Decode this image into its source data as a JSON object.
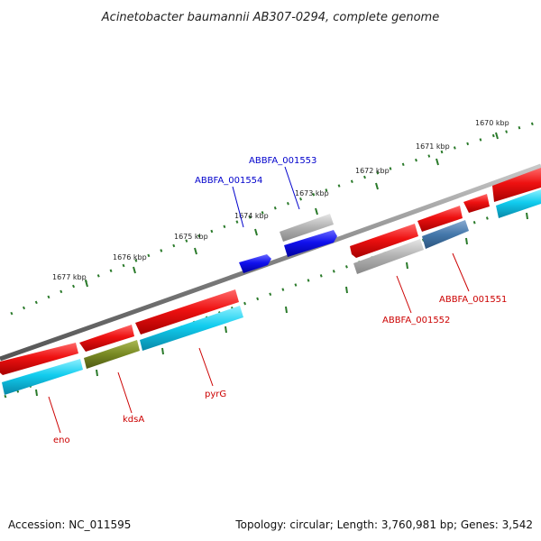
{
  "title": "Acinetobacter baumannii AB307-0294, complete genome",
  "footer": {
    "accession": "Accession: NC_011595",
    "stats": "Topology: circular; Length: 3,760,981 bp; Genes: 3,542"
  },
  "scale": {
    "ticks": [
      {
        "label": "1677 kbp"
      },
      {
        "label": "1676 kbp"
      },
      {
        "label": "1675 kbp"
      },
      {
        "label": "1674 kbp"
      },
      {
        "label": "1673 kbp"
      },
      {
        "label": "1672 kbp"
      },
      {
        "label": "1671 kbp"
      },
      {
        "label": "1670 kbp"
      }
    ]
  },
  "gene_labels": [
    {
      "text": "ABBFA_001553",
      "color": "#0000cc"
    },
    {
      "text": "ABBFA_001554",
      "color": "#0000cc"
    },
    {
      "text": "ABBFA_001552",
      "color": "#cc0000"
    },
    {
      "text": "ABBFA_001551",
      "color": "#cc0000"
    },
    {
      "text": "eno",
      "color": "#cc0000"
    },
    {
      "text": "kdsA",
      "color": "#cc0000"
    },
    {
      "text": "pyrG",
      "color": "#cc0000"
    }
  ],
  "colors": {
    "cds_red": "#ee1111",
    "cds_blue": "#1111ee",
    "gene_gray": "#aaaaaa",
    "gene_cyan": "#11ccee",
    "olive": "#778822",
    "steel": "#4477aa",
    "backbone": "#808080",
    "tick_green": "#2a7a2a"
  }
}
